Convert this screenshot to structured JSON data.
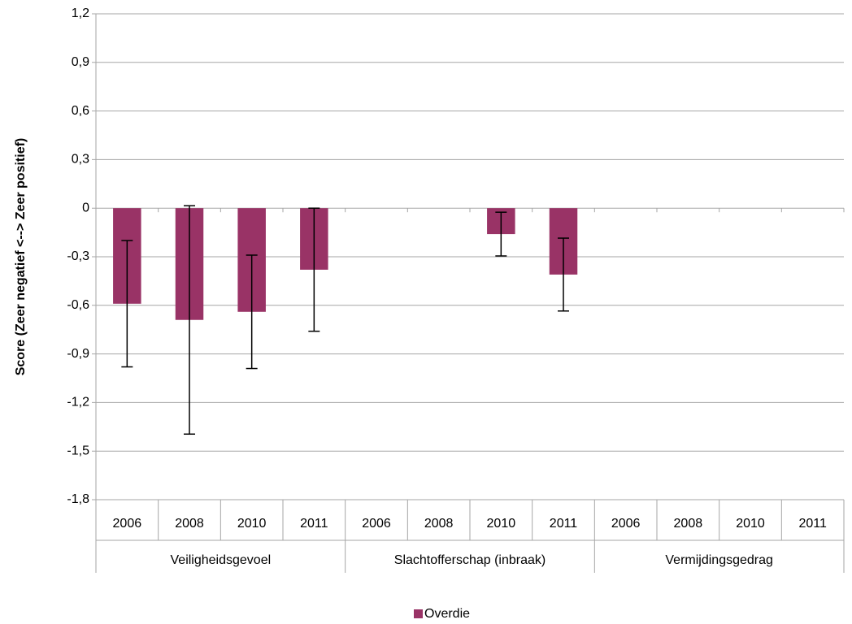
{
  "chart_data": {
    "type": "bar",
    "y_label": "Score (Zeer negatief <--> Zeer positief)",
    "groups": [
      "Veiligheidsgevoel",
      "Slachtofferschap (inbraak)",
      "Vermijdingsgedrag"
    ],
    "categories": [
      "2006",
      "2008",
      "2010",
      "2011",
      "2006",
      "2008",
      "2010",
      "2011",
      "2006",
      "2008",
      "2010",
      "2011"
    ],
    "series": [
      {
        "name": "Overdie",
        "color": "#993366",
        "values": [
          -0.59,
          -0.69,
          -0.64,
          -0.38,
          null,
          null,
          -0.16,
          -0.41,
          null,
          null,
          null,
          null
        ],
        "errors": [
          0.39,
          0.705,
          0.35,
          0.38,
          null,
          null,
          0.135,
          0.225,
          null,
          null,
          null,
          null
        ]
      }
    ],
    "ylim": [
      -1.8,
      1.2
    ],
    "yticks": [
      {
        "value": 1.2,
        "label": "1,2"
      },
      {
        "value": 0.9,
        "label": "0,9"
      },
      {
        "value": 0.6,
        "label": "0,6"
      },
      {
        "value": 0.3,
        "label": "0,3"
      },
      0,
      {
        "value": -0.3,
        "label": "-0,3"
      },
      {
        "value": -0.6,
        "label": "-0,6"
      },
      {
        "value": -0.9,
        "label": "-0,9"
      },
      {
        "value": -1.2,
        "label": "-1,2"
      },
      {
        "value": -1.5,
        "label": "-1,5"
      },
      {
        "value": -1.8,
        "label": "-1,8"
      }
    ],
    "grid": true
  }
}
